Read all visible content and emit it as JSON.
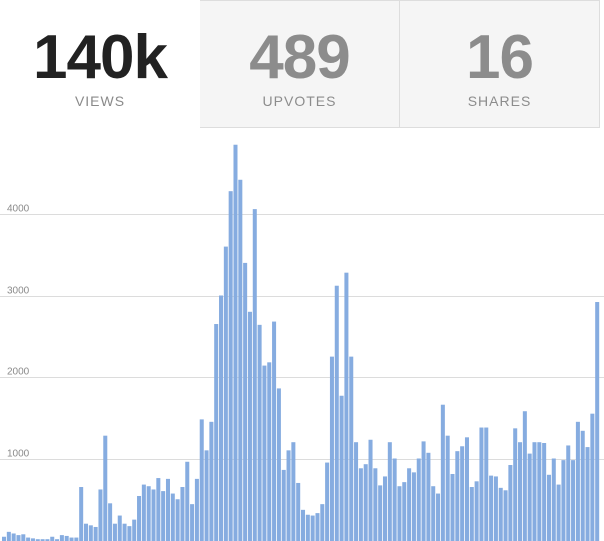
{
  "stats": [
    {
      "value": "140k",
      "label": "VIEWS",
      "active": true
    },
    {
      "value": "489",
      "label": "UPVOTES",
      "active": false
    },
    {
      "value": "16",
      "label": "SHARES",
      "active": false
    }
  ],
  "colors": {
    "bar": "#86ace0",
    "active_value": "#222222",
    "inactive_value": "#8c8c8c",
    "grid": "#dcdcdc"
  },
  "chart_data": {
    "type": "bar",
    "grid": true,
    "ylim": [
      0,
      4900
    ],
    "yticks": [
      1000,
      2000,
      3000,
      4000
    ],
    "ytick_labels": [
      "1000",
      "2000",
      "3000",
      "4000"
    ],
    "values": [
      40,
      100,
      80,
      60,
      70,
      30,
      20,
      10,
      10,
      10,
      40,
      10,
      60,
      50,
      30,
      30,
      650,
      200,
      180,
      160,
      620,
      1280,
      450,
      200,
      300,
      200,
      170,
      250,
      540,
      680,
      660,
      620,
      760,
      600,
      750,
      570,
      500,
      650,
      960,
      440,
      750,
      1480,
      1100,
      1450,
      2650,
      3000,
      3600,
      4280,
      4850,
      4420,
      3400,
      2800,
      4060,
      2640,
      2140,
      2180,
      2680,
      1860,
      860,
      1100,
      1200,
      700,
      370,
      310,
      300,
      330,
      440,
      950,
      2250,
      3120,
      1770,
      3280,
      2250,
      1200,
      880,
      930,
      1230,
      880,
      670,
      780,
      1200,
      1000,
      660,
      710,
      880,
      830,
      1000,
      1210,
      1070,
      660,
      570,
      1660,
      1280,
      810,
      1090,
      1150,
      1260,
      650,
      720,
      1380,
      1380,
      790,
      780,
      640,
      610,
      920,
      1370,
      1200,
      1580,
      1060,
      1200,
      1200,
      1190,
      800,
      1000,
      680,
      980,
      1160,
      980,
      1450,
      1340,
      1140,
      1550,
      2920
    ]
  }
}
